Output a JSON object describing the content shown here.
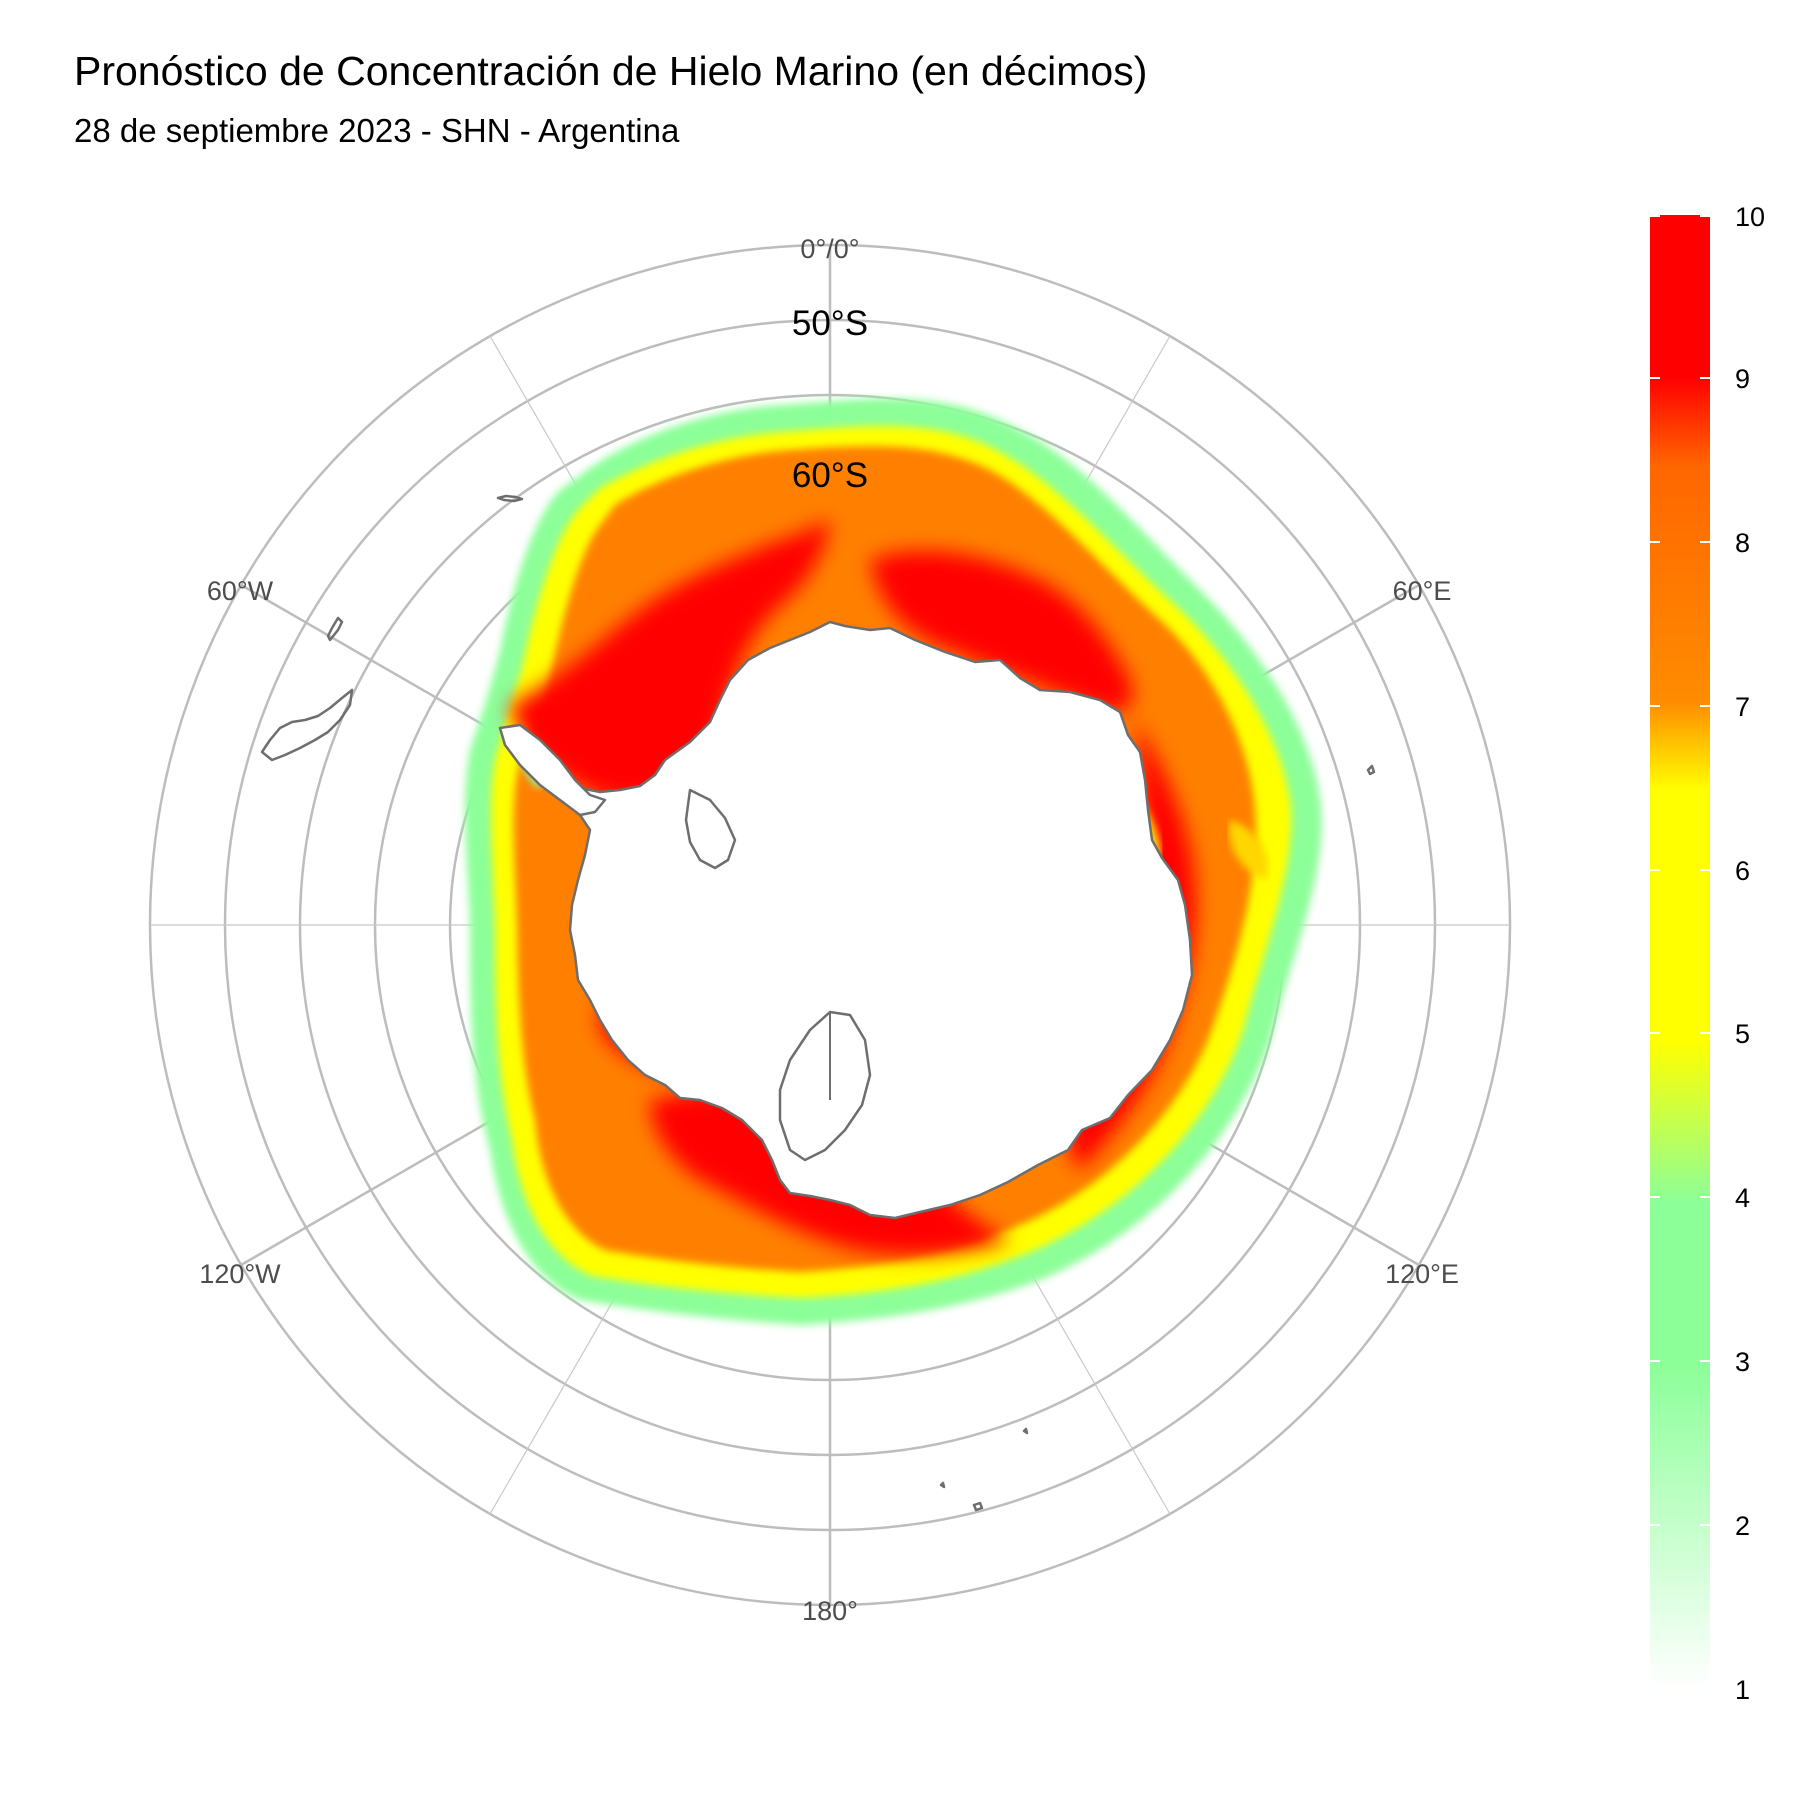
{
  "title": "Pronóstico de Concentración de Hielo Marino (en décimos)",
  "subtitle": "28 de septiembre 2023 - SHN - Argentina",
  "map": {
    "projection": "south-polar-stereographic",
    "longitude_labels": [
      "0°/0°",
      "60°E",
      "120°E",
      "180°",
      "120°W",
      "60°W"
    ],
    "latitude_labels": [
      "50°S",
      "60°S"
    ],
    "colors": {
      "water": "#ffffff",
      "coast": "#6e6e6e",
      "grid": "#bdbdbd"
    }
  },
  "legend": {
    "min": 1,
    "max": 10,
    "tick_labels": [
      "1",
      "2",
      "3",
      "4",
      "5",
      "6",
      "7",
      "8",
      "9",
      "10"
    ],
    "color_stops": [
      {
        "value": 1,
        "color": "#ffffff"
      },
      {
        "value": 3,
        "color": "#8cff99"
      },
      {
        "value": 4,
        "color": "#8cff99"
      },
      {
        "value": 5,
        "color": "#ffff00"
      },
      {
        "value": 6.5,
        "color": "#ffff00"
      },
      {
        "value": 7,
        "color": "#ff8c00"
      },
      {
        "value": 8.5,
        "color": "#ff6600"
      },
      {
        "value": 9,
        "color": "#ff0000"
      },
      {
        "value": 10,
        "color": "#ff0000"
      }
    ]
  }
}
